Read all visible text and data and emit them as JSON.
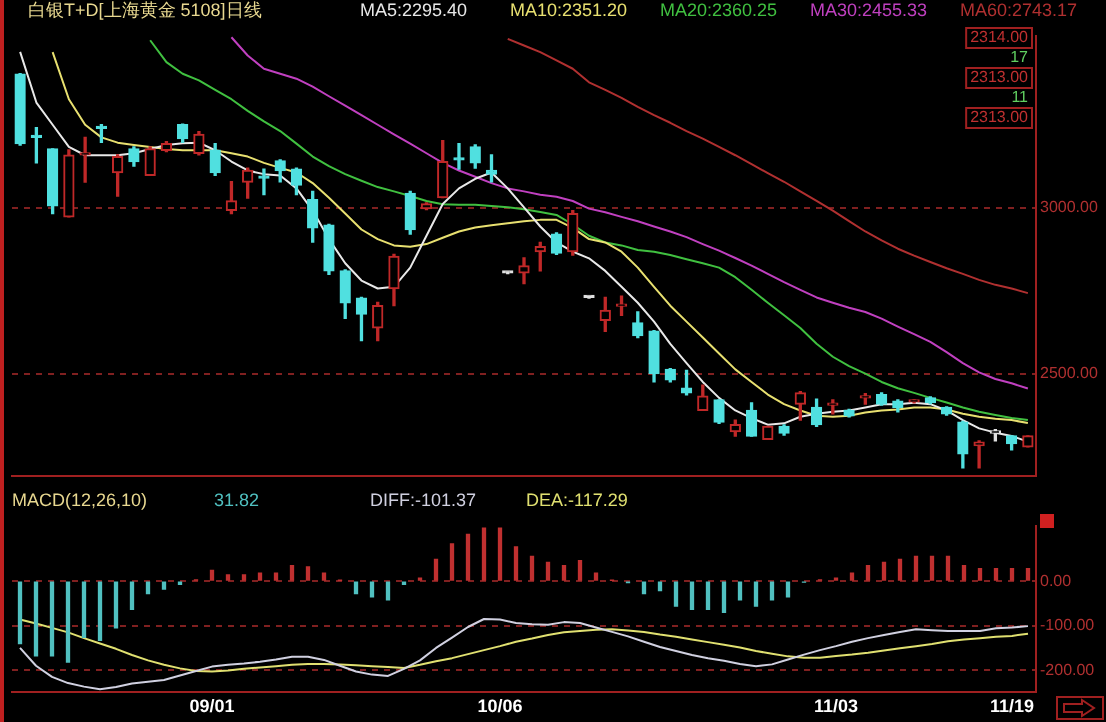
{
  "chart_data": [
    {
      "type": "candlestick",
      "title": "白银T+D[上海黄金 5108]日线",
      "categories": [
        null,
        null,
        null,
        null,
        null,
        null,
        null,
        null,
        null,
        null,
        null,
        null,
        null,
        null,
        null,
        null,
        null,
        null,
        null,
        null,
        null,
        null,
        null,
        null,
        null,
        null,
        null,
        null,
        null,
        null,
        null,
        null,
        null,
        null,
        null,
        null,
        null,
        null,
        null,
        null,
        null,
        null,
        null,
        null,
        null,
        null,
        null,
        null,
        null,
        null,
        null,
        null,
        null,
        null,
        null,
        null,
        null,
        null,
        null,
        null,
        null,
        null,
        null
      ],
      "ohlc": [
        [
          3404,
          3405,
          3190,
          3194
        ],
        [
          3217,
          3242,
          3136,
          3213
        ],
        [
          3178,
          3178,
          2983,
          3006
        ],
        [
          2973,
          3175,
          2973,
          3159
        ],
        [
          3160,
          3213,
          3078,
          3165
        ],
        [
          3242,
          3251,
          3198,
          3240
        ],
        [
          3107,
          3160,
          3036,
          3155
        ],
        [
          3178,
          3184,
          3126,
          3140
        ],
        [
          3098,
          3184,
          3098,
          3178
        ],
        [
          3174,
          3200,
          3170,
          3194
        ],
        [
          3251,
          3253,
          3198,
          3209
        ],
        [
          3165,
          3230,
          3160,
          3222
        ],
        [
          3174,
          3194,
          3098,
          3107
        ],
        [
          2993,
          3079,
          2983,
          3021
        ],
        [
          3078,
          3120,
          3030,
          3113
        ],
        [
          3095,
          3117,
          3040,
          3090
        ],
        [
          3142,
          3145,
          3079,
          3113
        ],
        [
          3117,
          3120,
          3040,
          3069
        ],
        [
          3025,
          3050,
          2897,
          2940
        ],
        [
          2948,
          2950,
          2800,
          2810
        ],
        [
          2810,
          2813,
          2667,
          2714
        ],
        [
          2728,
          2730,
          2600,
          2680
        ],
        [
          2638,
          2715,
          2600,
          2705
        ],
        [
          2757,
          2860,
          2705,
          2854
        ],
        [
          3044,
          3050,
          2921,
          2935
        ],
        [
          2998,
          3015,
          2995,
          3012
        ],
        [
          3031,
          3203,
          3031,
          3140
        ],
        [
          3147,
          3194,
          3117,
          3145
        ],
        [
          3184,
          3190,
          3120,
          3136
        ],
        [
          3113,
          3160,
          3079,
          3102
        ],
        [
          2804,
          2806,
          2802,
          2804
        ],
        [
          2804,
          2849,
          2772,
          2825
        ],
        [
          2868,
          2896,
          2810,
          2883
        ],
        [
          2921,
          2925,
          2860,
          2864
        ],
        [
          2868,
          2992,
          2858,
          2983
        ],
        [
          2730,
          2732,
          2728,
          2730
        ],
        [
          2661,
          2730,
          2628,
          2691
        ],
        [
          2704,
          2734,
          2676,
          2709
        ],
        [
          2653,
          2686,
          2609,
          2615
        ],
        [
          2628,
          2630,
          2475,
          2500
        ],
        [
          2513,
          2515,
          2475,
          2481
        ],
        [
          2456,
          2510,
          2436,
          2442
        ],
        [
          2389,
          2465,
          2389,
          2432
        ],
        [
          2421,
          2421,
          2350,
          2354
        ],
        [
          2325,
          2360,
          2312,
          2346
        ],
        [
          2389,
          2412,
          2312,
          2312
        ],
        [
          2302,
          2341,
          2302,
          2341
        ],
        [
          2341,
          2345,
          2315,
          2321
        ],
        [
          2408,
          2446,
          2360,
          2442
        ],
        [
          2398,
          2423,
          2341,
          2346
        ],
        [
          2405,
          2421,
          2379,
          2408
        ],
        [
          2389,
          2392,
          2370,
          2373
        ],
        [
          2427,
          2440,
          2408,
          2430
        ],
        [
          2437,
          2442,
          2405,
          2408
        ],
        [
          2417,
          2421,
          2385,
          2398
        ],
        [
          2415,
          2421,
          2412,
          2418
        ],
        [
          2427,
          2430,
          2410,
          2413
        ],
        [
          2398,
          2400,
          2375,
          2379
        ],
        [
          2354,
          2356,
          2216,
          2258
        ],
        [
          2283,
          2297,
          2216,
          2293
        ],
        [
          2321,
          2331,
          2297,
          2322
        ],
        [
          2312,
          2312,
          2270,
          2289
        ],
        [
          2279,
          2312,
          2279,
          2312
        ]
      ],
      "colors": [
        "#50e0e0",
        "#50e0e0",
        "#50e0e0",
        "#c02828",
        "#c02828",
        "#50e0e0",
        "#c02828",
        "#50e0e0",
        "#c02828",
        "#c02828",
        "#50e0e0",
        "#c02828",
        "#50e0e0",
        "#c02828",
        "#c02828",
        "#50e0e0",
        "#50e0e0",
        "#50e0e0",
        "#50e0e0",
        "#50e0e0",
        "#50e0e0",
        "#50e0e0",
        "#c02828",
        "#c02828",
        "#50e0e0",
        "#c02828",
        "#c02828",
        "#50e0e0",
        "#50e0e0",
        "#50e0e0",
        "#e0e0e0",
        "#c02828",
        "#c02828",
        "#50e0e0",
        "#c02828",
        "#e0e0e0",
        "#c02828",
        "#c02828",
        "#50e0e0",
        "#50e0e0",
        "#50e0e0",
        "#50e0e0",
        "#c02828",
        "#50e0e0",
        "#c02828",
        "#50e0e0",
        "#c02828",
        "#50e0e0",
        "#c02828",
        "#50e0e0",
        "#c02828",
        "#50e0e0",
        "#c02828",
        "#50e0e0",
        "#50e0e0",
        "#c02828",
        "#50e0e0",
        "#50e0e0",
        "#50e0e0",
        "#c02828",
        "#e0e0e0",
        "#50e0e0",
        "#c02828"
      ],
      "series": [
        {
          "name": "MA5:2295.40",
          "type": "line",
          "color": "#e8e8e8",
          "values": [
            3471,
            3318,
            3251,
            3184,
            3159,
            3159,
            3159,
            3165,
            3178,
            3190,
            3195,
            3197,
            3174,
            3140,
            3113,
            3102,
            3098,
            3059,
            2992,
            2906,
            2833,
            2781,
            2757,
            2762,
            2820,
            2916,
            3012,
            3059,
            3088,
            3107,
            3059,
            3002,
            2944,
            2896,
            2868,
            2848,
            2810,
            2762,
            2714,
            2657,
            2590,
            2532,
            2475,
            2427,
            2389,
            2366,
            2346,
            2350,
            2370,
            2379,
            2385,
            2389,
            2398,
            2408,
            2408,
            2412,
            2408,
            2389,
            2360,
            2335,
            2322,
            2312,
            2295
          ]
        },
        {
          "name": "MA10:2351.20",
          "type": "line",
          "color": "#e8e070",
          "values": [
            null,
            null,
            3470,
            3328,
            3251,
            3213,
            3197,
            3190,
            3184,
            3178,
            3174,
            3174,
            3174,
            3165,
            3155,
            3136,
            3121,
            3107,
            3075,
            3031,
            2983,
            2935,
            2906,
            2887,
            2883,
            2891,
            2910,
            2929,
            2941,
            2948,
            2954,
            2960,
            2964,
            2964,
            2940,
            2906,
            2896,
            2868,
            2820,
            2762,
            2705,
            2657,
            2609,
            2561,
            2513,
            2475,
            2437,
            2408,
            2389,
            2373,
            2370,
            2373,
            2383,
            2389,
            2392,
            2398,
            2398,
            2392,
            2379,
            2370,
            2364,
            2360,
            2351
          ]
        },
        {
          "name": "MA20:2360.25",
          "type": "line",
          "color": "#40c040",
          "values": [
            null,
            null,
            null,
            null,
            null,
            null,
            null,
            null,
            3506,
            3440,
            3405,
            3385,
            3356,
            3328,
            3293,
            3261,
            3232,
            3194,
            3155,
            3126,
            3102,
            3082,
            3063,
            3050,
            3036,
            3021,
            3011,
            3010,
            3010,
            3006,
            3002,
            2996,
            2988,
            2979,
            2950,
            2916,
            2896,
            2887,
            2873,
            2868,
            2858,
            2845,
            2833,
            2820,
            2791,
            2753,
            2714,
            2676,
            2638,
            2590,
            2551,
            2523,
            2500,
            2475,
            2456,
            2442,
            2427,
            2413,
            2398,
            2385,
            2375,
            2366,
            2360
          ]
        },
        {
          "name": "MA30:2455.33",
          "type": "line",
          "color": "#c040c0",
          "values": [
            null,
            null,
            null,
            null,
            null,
            null,
            null,
            null,
            null,
            null,
            null,
            null,
            null,
            3515,
            3460,
            3420,
            3405,
            3390,
            3366,
            3337,
            3309,
            3280,
            3251,
            3222,
            3194,
            3165,
            3136,
            3113,
            3094,
            3075,
            3059,
            3050,
            3040,
            3034,
            3021,
            2998,
            2987,
            2973,
            2960,
            2944,
            2929,
            2912,
            2891,
            2871,
            2849,
            2826,
            2801,
            2776,
            2753,
            2730,
            2714,
            2699,
            2686,
            2666,
            2642,
            2619,
            2596,
            2565,
            2532,
            2504,
            2484,
            2471,
            2455
          ]
        },
        {
          "name": "MA60:2743.17",
          "type": "line",
          "color": "#b03030",
          "values": [
            null,
            null,
            null,
            null,
            null,
            null,
            null,
            null,
            null,
            null,
            null,
            null,
            null,
            null,
            null,
            null,
            null,
            null,
            null,
            null,
            null,
            null,
            null,
            null,
            null,
            null,
            null,
            null,
            null,
            null,
            3510,
            3490,
            3470,
            3445,
            3420,
            3379,
            3356,
            3332,
            3305,
            3280,
            3257,
            3232,
            3209,
            3184,
            3159,
            3132,
            3105,
            3079,
            3050,
            3021,
            2992,
            2960,
            2929,
            2902,
            2877,
            2856,
            2837,
            2818,
            2801,
            2783,
            2768,
            2757,
            2743
          ]
        }
      ],
      "ylim": [
        2190,
        3520
      ],
      "yticks": [
        {
          "value": 2500,
          "label": "2500.00"
        },
        {
          "value": 3000,
          "label": "3000.00"
        }
      ],
      "grid": "y",
      "tick_labels": "y",
      "annotations": [
        "2314.00",
        "17",
        "2313.00",
        "11",
        "2313.00"
      ]
    },
    {
      "type": "bar",
      "title": "MACD(12,26,10)",
      "categories": [
        null,
        null,
        null,
        null,
        null,
        null,
        null,
        null,
        null,
        null,
        null,
        null,
        "09/01",
        null,
        null,
        null,
        null,
        null,
        null,
        null,
        null,
        null,
        null,
        null,
        null,
        null,
        null,
        null,
        null,
        null,
        "10/06",
        null,
        null,
        null,
        null,
        null,
        null,
        null,
        null,
        null,
        null,
        null,
        null,
        null,
        null,
        null,
        null,
        null,
        null,
        null,
        null,
        "11/03",
        null,
        null,
        null,
        null,
        null,
        null,
        null,
        null,
        null,
        null,
        "11/19",
        null
      ],
      "series": [
        {
          "name": "31.82",
          "type": "bar",
          "color": "#50c0c0",
          "colors": [
            "#50c0c0",
            "#50c0c0",
            "#50c0c0",
            "#50c0c0",
            "#50c0c0",
            "#50c0c0",
            "#50c0c0",
            "#50c0c0",
            "#50c0c0",
            "#50c0c0",
            "#50c0c0",
            "#c03030",
            "#c03030",
            "#c03030",
            "#c03030",
            "#c03030",
            "#c03030",
            "#c03030",
            "#c03030",
            "#c03030",
            "#c03030",
            "#50c0c0",
            "#50c0c0",
            "#50c0c0",
            "#50c0c0",
            "#c03030",
            "#c03030",
            "#c03030",
            "#c03030",
            "#c03030",
            "#c03030",
            "#c03030",
            "#c03030",
            "#c03030",
            "#c03030",
            "#c03030",
            "#c03030",
            "#c03030",
            "#50c0c0",
            "#50c0c0",
            "#50c0c0",
            "#50c0c0",
            "#50c0c0",
            "#50c0c0",
            "#50c0c0",
            "#50c0c0",
            "#50c0c0",
            "#50c0c0",
            "#50c0c0",
            "#50c0c0",
            "#c03030",
            "#c03030",
            "#c03030",
            "#c03030",
            "#c03030",
            "#c03030",
            "#c03030",
            "#c03030",
            "#c03030",
            "#c03030",
            "#c03030",
            "#c03030",
            "#c03030",
            "#c03030"
          ],
          "values": [
            -140,
            -168,
            -168,
            -182,
            -126,
            -133,
            -105,
            -63,
            -28,
            -18,
            -7,
            3,
            24,
            14,
            14,
            18,
            18,
            35,
            32,
            18,
            2,
            -28,
            -35,
            -42,
            -7,
            7,
            49,
            84,
            105,
            119,
            119,
            77,
            56,
            42,
            35,
            46,
            18,
            2,
            -3,
            -28,
            -21,
            -56,
            -63,
            -63,
            -70,
            -42,
            -56,
            -42,
            -35,
            -2,
            3,
            7,
            18,
            35,
            42,
            49,
            56,
            56,
            56,
            35,
            28,
            28,
            28,
            28
          ]
        },
        {
          "name": "DIFF:-101.37",
          "type": "line",
          "color": "#d0d0e0",
          "values": [
            -150,
            -190,
            -215,
            -229,
            -237,
            -243,
            -238,
            -230,
            -226,
            -222,
            -212,
            -202,
            -192,
            -188,
            -185,
            -181,
            -176,
            -170,
            -170,
            -177,
            -190,
            -203,
            -210,
            -213,
            -197,
            -178,
            -150,
            -127,
            -103,
            -85,
            -86,
            -94,
            -97,
            -98,
            -92,
            -94,
            -104,
            -114,
            -124,
            -136,
            -148,
            -157,
            -166,
            -173,
            -179,
            -186,
            -191,
            -187,
            -176,
            -165,
            -155,
            -146,
            -136,
            -128,
            -121,
            -114,
            -108,
            -110,
            -112,
            -112,
            -112,
            -106,
            -104,
            -101
          ]
        },
        {
          "name": "DEA:-117.29",
          "type": "line",
          "color": "#e0e070",
          "values": [
            -86,
            -95,
            -105,
            -115,
            -128,
            -140,
            -152,
            -166,
            -178,
            -188,
            -196,
            -202,
            -203,
            -201,
            -197,
            -194,
            -191,
            -188,
            -186,
            -186,
            -187,
            -189,
            -191,
            -193,
            -195,
            -188,
            -180,
            -173,
            -164,
            -155,
            -146,
            -136,
            -129,
            -121,
            -115,
            -112,
            -109,
            -108,
            -111,
            -114,
            -120,
            -125,
            -131,
            -137,
            -143,
            -149,
            -157,
            -163,
            -169,
            -172,
            -172,
            -168,
            -165,
            -161,
            -156,
            -151,
            -146,
            -141,
            -135,
            -131,
            -128,
            -125,
            -123,
            -118
          ]
        }
      ],
      "ylim": [
        -250,
        125
      ],
      "yticks": [
        {
          "value": -200,
          "label": "-200.00"
        },
        {
          "value": -100,
          "label": "-100.00"
        },
        {
          "value": 0,
          "label": "0.00"
        }
      ],
      "grid": "y"
    }
  ]
}
